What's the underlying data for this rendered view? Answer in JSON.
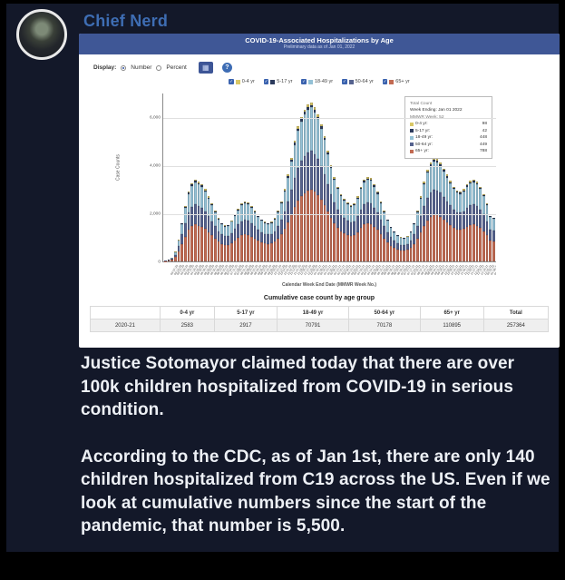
{
  "post": {
    "author": "Chief Nerd",
    "body_paragraphs": [
      "Justice Sotomayor claimed today that there are over 100k children hospitalized from COVID-19 in serious condition.",
      "According to the CDC, as of Jan 1st, there are only 140 children hospitalized from C19 across the US. Even if we look at cumulative numbers since the start of the pandemic, that number is 5,500."
    ]
  },
  "chart_card": {
    "title": "COVID-19-Associated Hospitalizations by Age",
    "subtitle": "Preliminary data as of Jan 01, 2022",
    "controls": {
      "display_label": "Display:",
      "options": [
        "Number",
        "Percent"
      ],
      "selected": "Number",
      "apply_icon": "▦",
      "help_icon": "?"
    }
  },
  "chart_data": {
    "type": "bar",
    "stacked": true,
    "title": "COVID-19-Associated Hospitalizations by Age",
    "ylabel": "Case Counts",
    "xlabel": "Calendar Week End Date (MMWR Week No.)",
    "yticks": [
      0,
      2000,
      4000,
      6000
    ],
    "ylim": [
      0,
      7000
    ],
    "legend": [
      "0-4 yr",
      "5-17 yr",
      "18-49 yr",
      "50-64 yr",
      "65+ yr"
    ],
    "colors": {
      "0-4 yr": "#d9c766",
      "5-17 yr": "#2b3a5c",
      "18-49 yr": "#94c1d6",
      "50-64 yr": "#55628e",
      "65+ yr": "#c26a52"
    },
    "stack_order_bottom_to_top": [
      "65+ yr",
      "50-64 yr",
      "18-49 yr",
      "5-17 yr",
      "0-4 yr"
    ],
    "age_group_shares": {
      "0-4 yr": 0.017,
      "5-17 yr": 0.016,
      "18-49 yr": 0.272,
      "50-64 yr": 0.245,
      "65+ yr": 0.45
    },
    "x_weeks": {
      "start": "2020-03-07",
      "end": "2022-01-01",
      "count": 100
    },
    "totals": [
      30,
      60,
      150,
      400,
      900,
      1600,
      2300,
      2900,
      3250,
      3400,
      3300,
      3200,
      3000,
      2700,
      2400,
      2100,
      1800,
      1600,
      1500,
      1520,
      1700,
      1950,
      2200,
      2400,
      2500,
      2450,
      2300,
      2100,
      1900,
      1750,
      1650,
      1600,
      1650,
      1800,
      2100,
      2500,
      3000,
      3600,
      4300,
      5000,
      5600,
      6000,
      6300,
      6500,
      6600,
      6400,
      6100,
      5700,
      5200,
      4600,
      4000,
      3500,
      3100,
      2800,
      2600,
      2450,
      2350,
      2400,
      2700,
      3100,
      3400,
      3500,
      3450,
      3200,
      2900,
      2500,
      2100,
      1750,
      1450,
      1250,
      1100,
      1000,
      980,
      1050,
      1250,
      1600,
      2100,
      2700,
      3300,
      3800,
      4100,
      4300,
      4250,
      4100,
      3850,
      3600,
      3350,
      3100,
      2950,
      2900,
      3000,
      3200,
      3350,
      3400,
      3300,
      3100,
      2800,
      2400,
      1900,
      1825
    ],
    "tooltip": {
      "header": "Total Count",
      "week_ending": "Week Ending: Jan 01 2022",
      "mmwr_week": "MMWR Week: 52",
      "rows": [
        {
          "label": "0-4 yr",
          "value": "98"
        },
        {
          "label": "5-17 yr",
          "value": "42"
        },
        {
          "label": "18-49 yr",
          "value": "448"
        },
        {
          "label": "50-64 yr",
          "value": "449"
        },
        {
          "label": "65+ yr",
          "value": "788"
        }
      ]
    },
    "table": {
      "caption": "Cumulative case count by age group",
      "headers": [
        "",
        "0-4 yr",
        "5-17 yr",
        "18-49 yr",
        "50-64 yr",
        "65+ yr",
        "Total"
      ],
      "rows": [
        [
          "2020-21",
          "2583",
          "2917",
          "70791",
          "70178",
          "110895",
          "257364"
        ]
      ]
    }
  }
}
